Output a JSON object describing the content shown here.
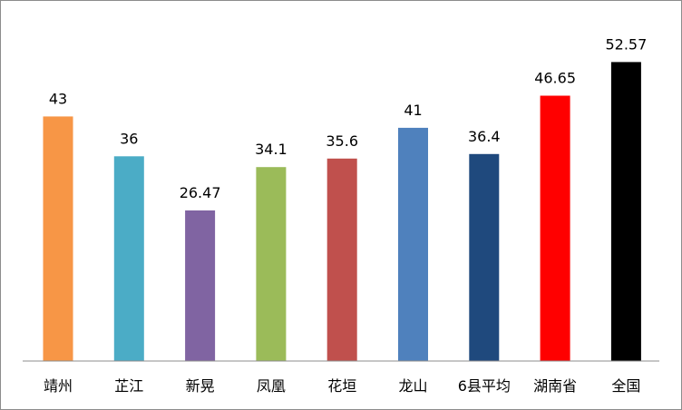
{
  "chart_data": {
    "type": "bar",
    "title": "",
    "xlabel": "",
    "ylabel": "",
    "ylim": [
      0,
      60
    ],
    "grid": false,
    "legend": "none",
    "categories": [
      "靖州",
      "芷江",
      "新晃",
      "凤凰",
      "花垣",
      "龙山",
      "6县平均",
      "湖南省",
      "全国"
    ],
    "values": [
      43,
      36,
      26.47,
      34.1,
      35.6,
      41,
      36.4,
      46.65,
      52.57
    ],
    "value_labels": [
      "43",
      "36",
      "26.47",
      "34.1",
      "35.6",
      "41",
      "36.4",
      "46.65",
      "52.57"
    ],
    "colors": [
      "#F79646",
      "#4BACC6",
      "#8064A2",
      "#9BBB59",
      "#C0504D",
      "#4F81BD",
      "#1F497D",
      "#FF0000",
      "#000000"
    ]
  }
}
